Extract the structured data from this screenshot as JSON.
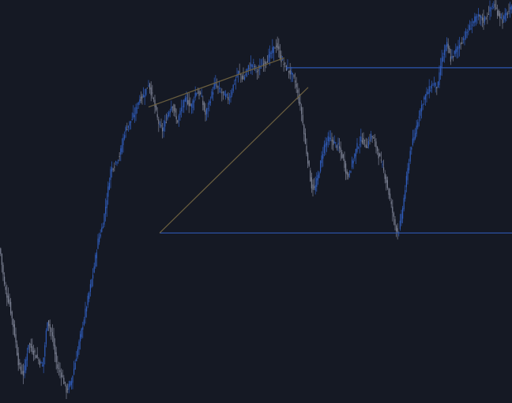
{
  "chart_data": {
    "type": "candlestick",
    "title": "",
    "xlabel": "",
    "ylabel": "",
    "x_range": [
      0,
      648
    ],
    "ylim": [
      0,
      1000
    ],
    "grid": false,
    "legend": "none",
    "colors": {
      "background": "#151924",
      "bull": "#2f5bb8",
      "bear": "#7b8092",
      "trendline": "#6b5f3f",
      "level": "#2d56b0"
    },
    "series": [
      {
        "kind": "price-path",
        "x": [
          0,
          6,
          12,
          18,
          24,
          30,
          36,
          42,
          48,
          54,
          60,
          66,
          72,
          78,
          84,
          90,
          96,
          102,
          108,
          112,
          118,
          124,
          130,
          136,
          140,
          146,
          152,
          158,
          164,
          170,
          176,
          182,
          188,
          194,
          198,
          202,
          206,
          212,
          218,
          224,
          230,
          236,
          242,
          248,
          254,
          260,
          266,
          272,
          278,
          284,
          290,
          296,
          302,
          308,
          314,
          320,
          326,
          332,
          338,
          344,
          350,
          356,
          362,
          366,
          370,
          374,
          378,
          382,
          386,
          390,
          394,
          398,
          402,
          406,
          410,
          416,
          422,
          428,
          434,
          440,
          446,
          452,
          458,
          464,
          470,
          476,
          482,
          488,
          494,
          500,
          504,
          508,
          512,
          516,
          520,
          524,
          530,
          536,
          542,
          548,
          554,
          558,
          562,
          566,
          570,
          576,
          582,
          588,
          594,
          600,
          606,
          612,
          618,
          624,
          630,
          636,
          642,
          648
        ],
        "y": [
          380,
          280,
          240,
          170,
          80,
          60,
          140,
          120,
          100,
          80,
          200,
          160,
          80,
          60,
          20,
          40,
          100,
          160,
          220,
          260,
          320,
          400,
          440,
          520,
          580,
          600,
          620,
          680,
          700,
          720,
          760,
          770,
          800,
          760,
          720,
          690,
          680,
          720,
          750,
          700,
          740,
          760,
          740,
          780,
          770,
          720,
          760,
          800,
          780,
          770,
          760,
          800,
          830,
          810,
          840,
          850,
          830,
          850,
          860,
          880,
          900,
          860,
          840,
          830,
          820,
          800,
          760,
          720,
          650,
          600,
          540,
          530,
          560,
          600,
          640,
          660,
          650,
          640,
          610,
          560,
          600,
          640,
          660,
          640,
          670,
          640,
          600,
          560,
          500,
          440,
          420,
          460,
          520,
          580,
          640,
          660,
          720,
          760,
          780,
          800,
          790,
          850,
          880,
          900,
          860,
          880,
          900,
          920,
          940,
          960,
          970,
          960,
          980,
          1000,
          980,
          960,
          980,
          990
        ]
      }
    ],
    "levels": [
      {
        "name": "upper-level",
        "y": 840,
        "x_from": 362,
        "x_to": 648
      },
      {
        "name": "lower-level",
        "y": 420,
        "x_from": 202,
        "x_to": 648
      }
    ],
    "trendlines": [
      {
        "name": "upper-trendline",
        "x": [
          188,
          360
        ],
        "y": [
          740,
          865
        ]
      },
      {
        "name": "lower-trendline",
        "x": [
          202,
          390
        ],
        "y": [
          420,
          790
        ]
      }
    ]
  }
}
